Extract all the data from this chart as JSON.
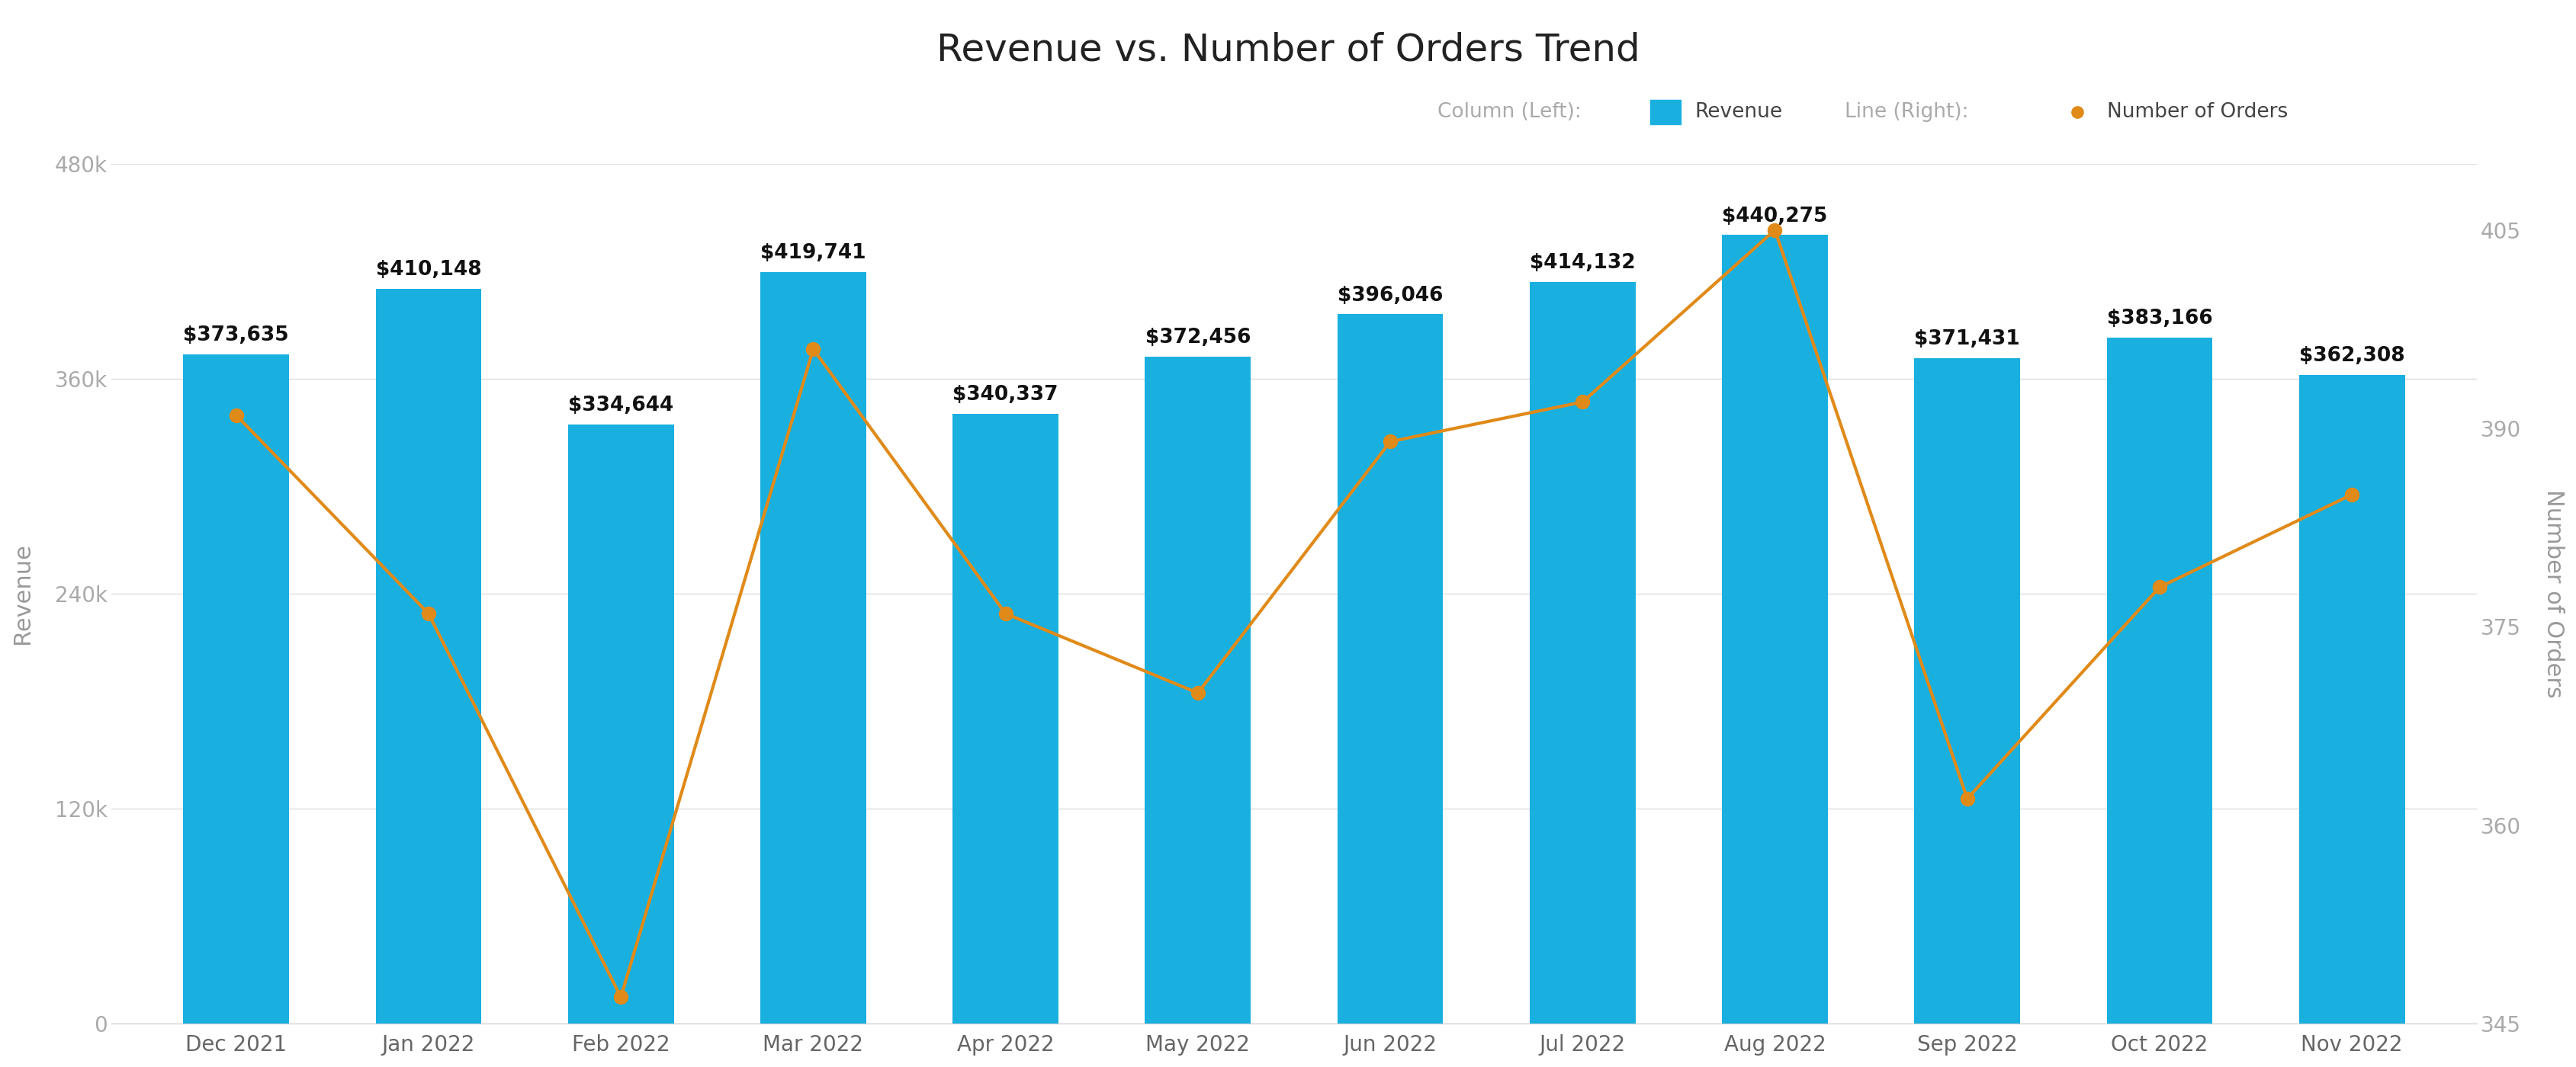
{
  "title": "Revenue vs. Number of Orders Trend",
  "categories": [
    "Dec 2021",
    "Jan 2022",
    "Feb 2022",
    "Mar 2022",
    "Apr 2022",
    "May 2022",
    "Jun 2022",
    "Jul 2022",
    "Aug 2022",
    "Sep 2022",
    "Oct 2022",
    "Nov 2022"
  ],
  "revenue": [
    373635,
    410148,
    334644,
    419741,
    340337,
    372456,
    396046,
    414132,
    440275,
    371431,
    383166,
    362308
  ],
  "revenue_labels": [
    "$373,635",
    "$410,148",
    "$334,644",
    "$419,741",
    "$340,337",
    "$372,456",
    "$396,046",
    "$414,132",
    "$440,275",
    "$371,431",
    "$383,166",
    "$362,308"
  ],
  "orders": [
    391,
    376,
    347,
    396,
    376,
    370,
    389,
    392,
    405,
    362,
    378,
    385
  ],
  "bar_color": "#19B0E0",
  "line_color": "#E08A19",
  "marker_color": "#E08A19",
  "background_color": "#FFFFFF",
  "grid_color": "#dddddd",
  "spine_color": "#cccccc",
  "title_color": "#222222",
  "axis_label_color": "#999999",
  "tick_color": "#aaaaaa",
  "xtick_color": "#666666",
  "bar_label_color": "#111111",
  "legend_gray_color": "#aaaaaa",
  "legend_dark_color": "#444444",
  "title_fontsize": 36,
  "bar_label_fontsize": 19,
  "axis_label_fontsize": 22,
  "tick_fontsize": 20,
  "legend_fontsize": 19,
  "ylabel_left": "Revenue",
  "ylabel_right": "Number of Orders",
  "ylim_left": [
    0,
    480000
  ],
  "ylim_right": [
    345,
    410
  ],
  "yticks_left": [
    0,
    120000,
    240000,
    360000,
    480000
  ],
  "yticks_right": [
    345,
    360,
    375,
    390,
    405
  ],
  "legend_col_left_label": "Column (Left):",
  "legend_revenue_label": "Revenue",
  "legend_line_right_label": "Line (Right):",
  "legend_orders_label": "Number of Orders",
  "bar_width": 0.55,
  "line_width": 3.0,
  "marker_size": 13
}
